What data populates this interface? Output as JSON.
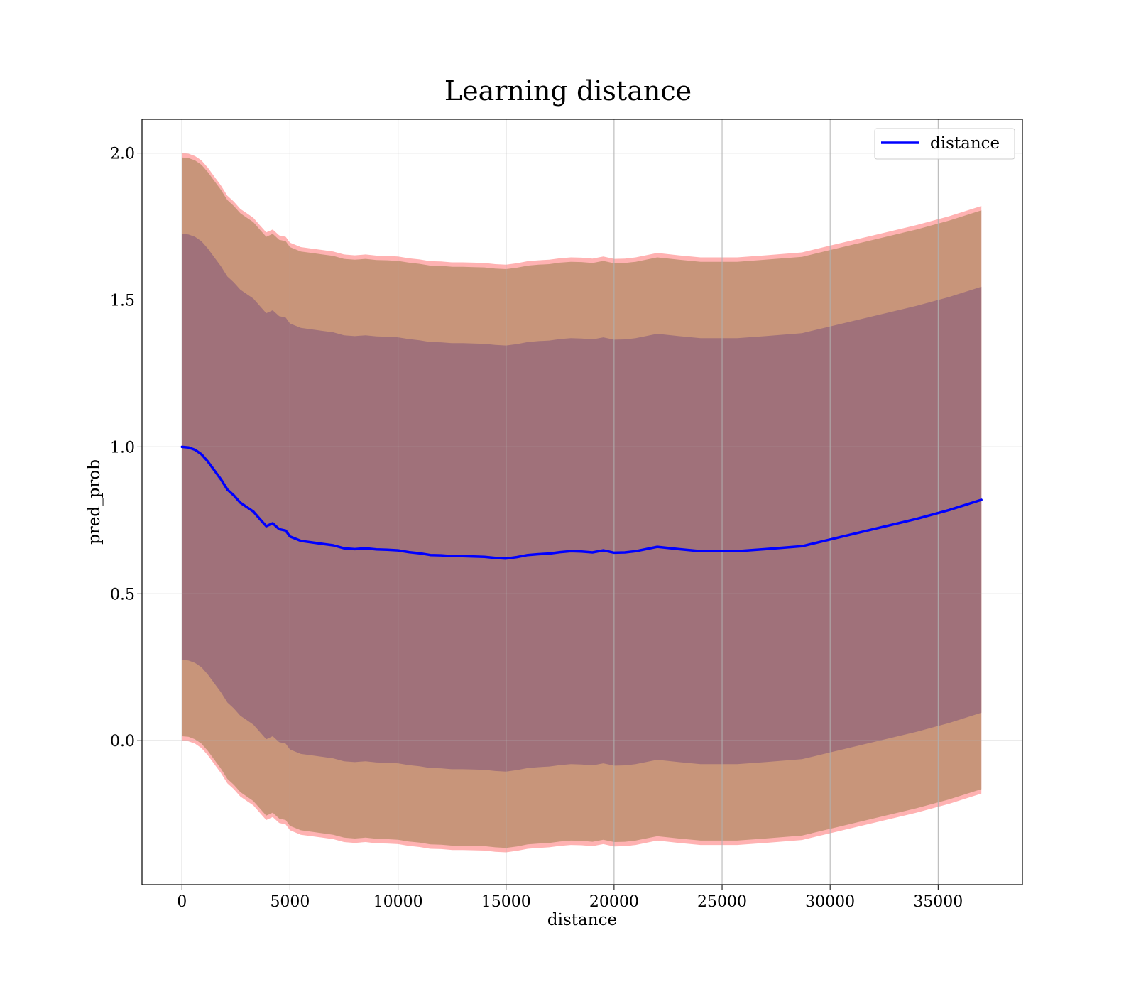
{
  "chart_data": {
    "type": "line",
    "title": "Learning distance",
    "xlabel": "distance",
    "ylabel": "pred_prob",
    "xlim": [
      -1850,
      38900
    ],
    "ylim": [
      -0.49,
      2.115
    ],
    "xticks": [
      0,
      5000,
      10000,
      15000,
      20000,
      25000,
      30000,
      35000
    ],
    "yticks": [
      0.0,
      0.5,
      1.0,
      1.5,
      2.0
    ],
    "xtick_labels": [
      "0",
      "5000",
      "10000",
      "15000",
      "20000",
      "25000",
      "30000",
      "35000"
    ],
    "ytick_labels": [
      "0.0",
      "0.5",
      "1.0",
      "1.5",
      "2.0"
    ],
    "grid": true,
    "legend_position": "top-right",
    "colors": {
      "line": "#0000ff",
      "inner_band": "#a0717a",
      "outer_band": "#c8957a",
      "edge_band": "#ffaaaa"
    },
    "series": [
      {
        "name": "distance",
        "x": [
          0,
          300,
          600,
          900,
          1200,
          1500,
          1800,
          2100,
          2400,
          2700,
          3000,
          3300,
          3600,
          3900,
          4200,
          4500,
          4800,
          5000,
          5500,
          6000,
          6500,
          7000,
          7500,
          8000,
          8500,
          9000,
          9500,
          10000,
          10500,
          11000,
          11500,
          12000,
          12500,
          13000,
          13500,
          14000,
          14500,
          15000,
          15500,
          16000,
          16500,
          17000,
          17500,
          18000,
          18500,
          19000,
          19500,
          20000,
          20500,
          21000,
          22000,
          23000,
          24000,
          25000,
          25700,
          27000,
          28700,
          30000,
          32000,
          34000,
          35500,
          37000
        ],
        "y": [
          1.0,
          0.998,
          0.99,
          0.975,
          0.95,
          0.92,
          0.89,
          0.855,
          0.835,
          0.81,
          0.795,
          0.78,
          0.755,
          0.73,
          0.74,
          0.72,
          0.715,
          0.695,
          0.68,
          0.675,
          0.67,
          0.665,
          0.655,
          0.652,
          0.655,
          0.651,
          0.65,
          0.648,
          0.642,
          0.638,
          0.632,
          0.631,
          0.628,
          0.628,
          0.627,
          0.626,
          0.622,
          0.62,
          0.625,
          0.632,
          0.635,
          0.637,
          0.642,
          0.645,
          0.644,
          0.641,
          0.648,
          0.64,
          0.641,
          0.645,
          0.66,
          0.652,
          0.645,
          0.645,
          0.645,
          0.652,
          0.662,
          0.685,
          0.72,
          0.755,
          0.785,
          0.82
        ]
      }
    ],
    "bands": [
      {
        "label": "inner",
        "lower_offset": -0.725,
        "upper_offset": 0.725
      },
      {
        "label": "outer",
        "lower_offset": -0.985,
        "upper_offset": 0.985
      },
      {
        "label": "edge",
        "lower_offset": -1.0,
        "upper_offset": 1.0
      }
    ]
  }
}
